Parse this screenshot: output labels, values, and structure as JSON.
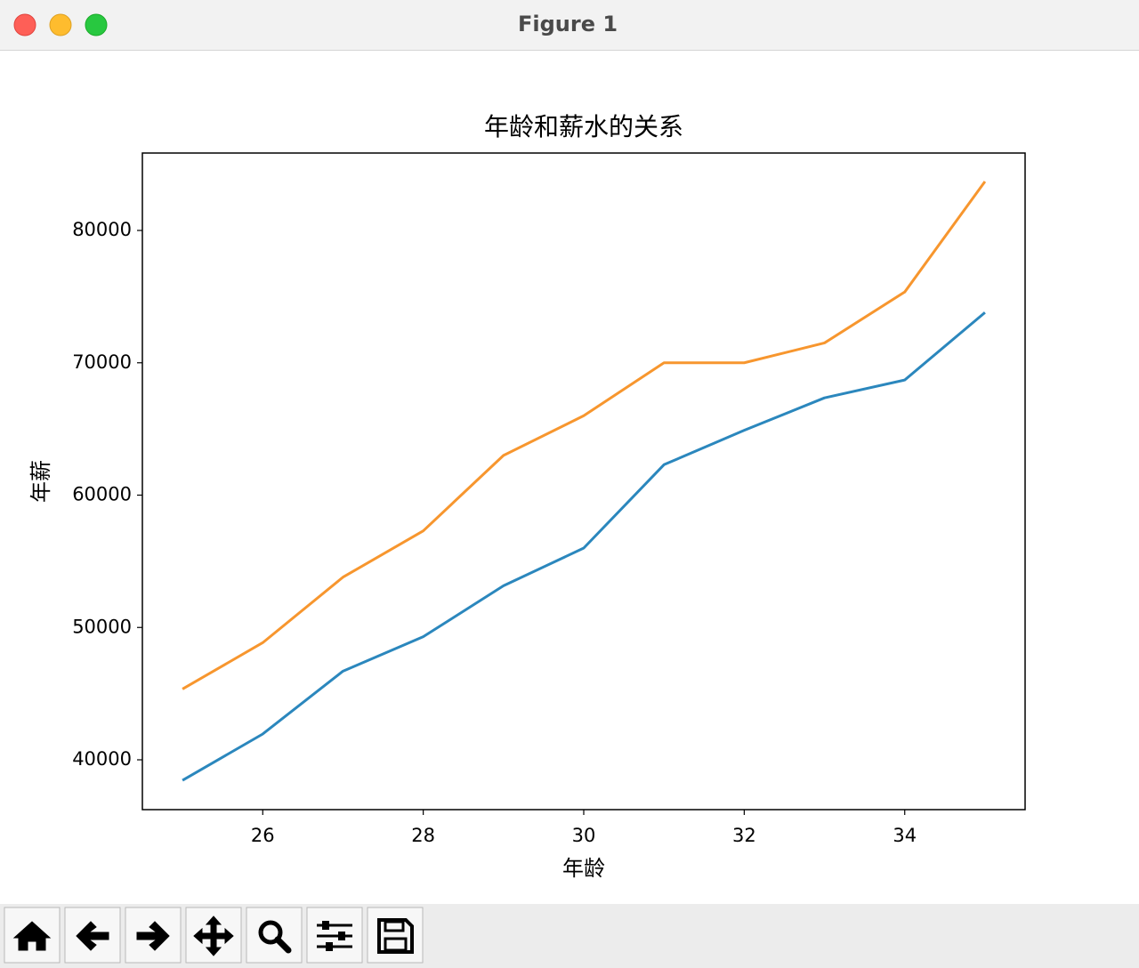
{
  "window": {
    "title": "Figure 1"
  },
  "chart_data": {
    "type": "line",
    "title": "年龄和薪水的关系",
    "x_label": "年龄",
    "y_label": "年薪",
    "x": [
      25,
      26,
      27,
      28,
      29,
      30,
      31,
      32,
      33,
      34,
      35
    ],
    "series": [
      {
        "color": "#2b87bd",
        "values": [
          38450,
          41950,
          46700,
          49300,
          53150,
          56000,
          62300,
          64900,
          67350,
          68700,
          73800
        ]
      },
      {
        "color": "#f7962e",
        "values": [
          45350,
          48850,
          53800,
          57300,
          63000,
          66000,
          70000,
          70000,
          71500,
          75350,
          83700
        ]
      }
    ],
    "xlim": [
      24.5,
      35.5
    ],
    "xticks": [
      26,
      28,
      30,
      32,
      34
    ],
    "ylim": [
      36235,
      85850
    ],
    "yticks": [
      40000,
      50000,
      60000,
      70000,
      80000
    ],
    "grid": false
  }
}
